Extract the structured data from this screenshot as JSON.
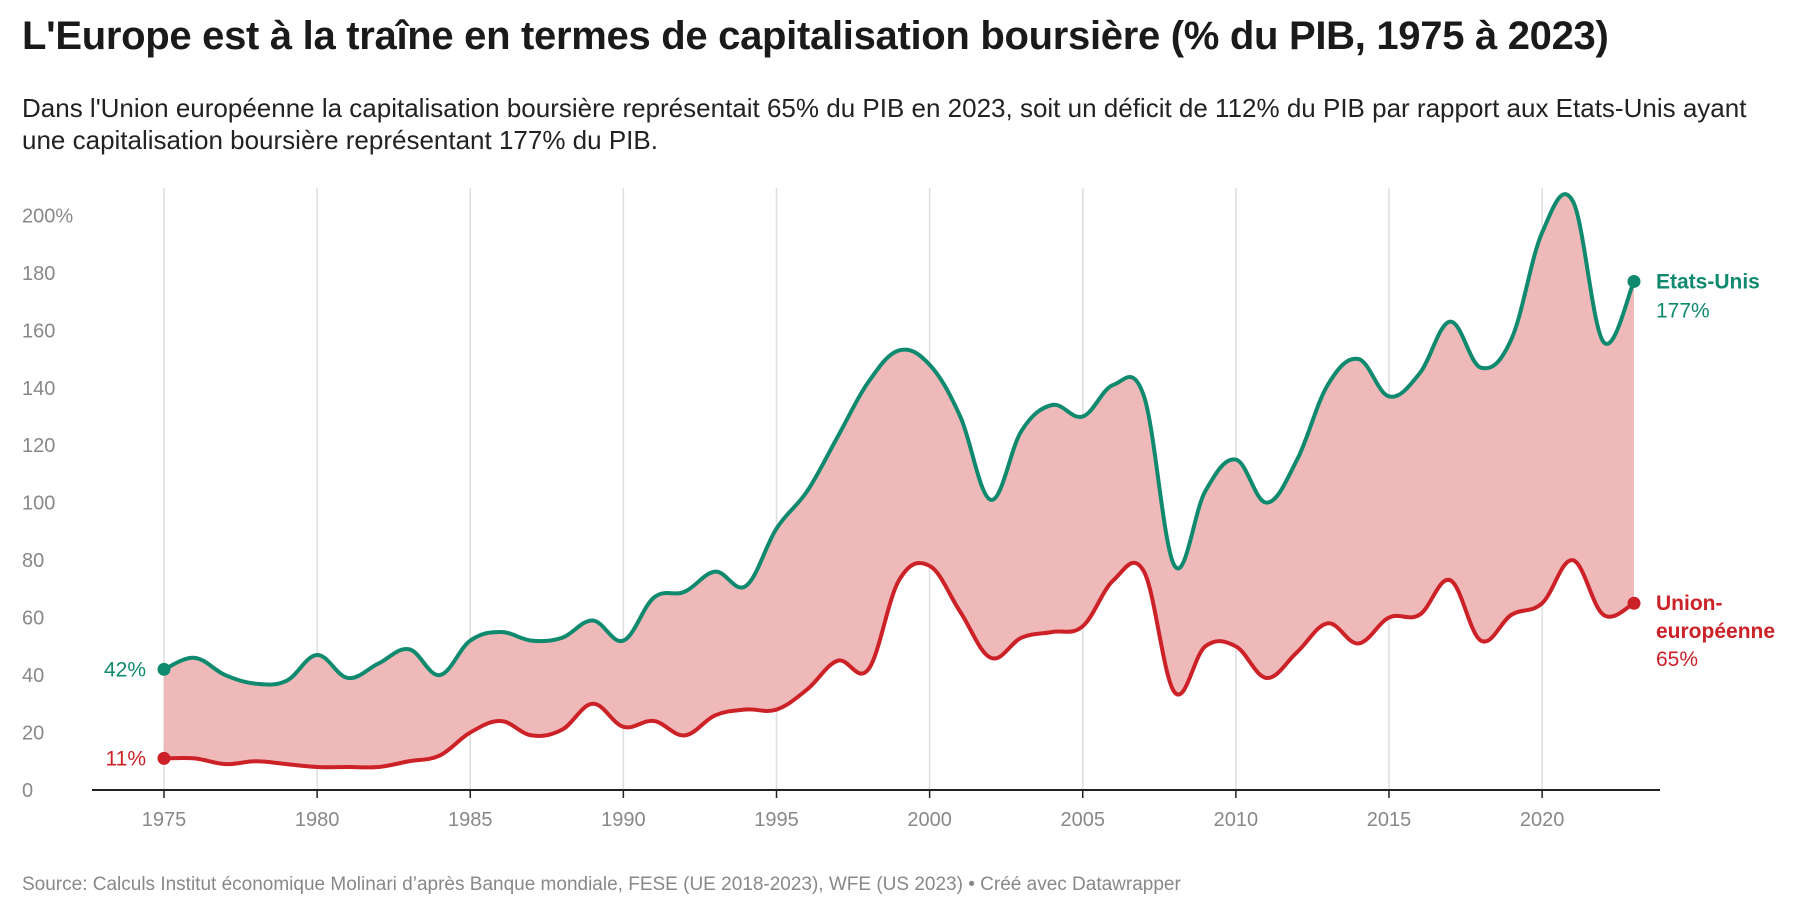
{
  "title": "L'Europe est à la traîne en termes de capitalisation boursière (% du PIB, 1975 à 2023)",
  "subtitle": "Dans l'Union européenne la capitalisation boursière représentait 65% du PIB en 2023, soit un déficit de 112% du PIB par rapport aux Etats-Unis ayant une capitalisation boursière représentant 177% du PIB.",
  "source": "Source: Calculs Institut économique Molinari d’après Banque mondiale, FESE (UE 2018-2023), WFE (US 2023) • Créé avec Datawrapper",
  "colors": {
    "us": "#0f8a6e",
    "eu": "#cc2127",
    "fill": "#efb9b9",
    "grid": "#dddddd",
    "axis": "#222222",
    "tick": "#888888"
  },
  "chart_data": {
    "type": "area",
    "x": [
      1975,
      1976,
      1977,
      1978,
      1979,
      1980,
      1981,
      1982,
      1983,
      1984,
      1985,
      1986,
      1987,
      1988,
      1989,
      1990,
      1991,
      1992,
      1993,
      1994,
      1995,
      1996,
      1997,
      1998,
      1999,
      2000,
      2001,
      2002,
      2003,
      2004,
      2005,
      2006,
      2007,
      2008,
      2009,
      2010,
      2011,
      2012,
      2013,
      2014,
      2015,
      2016,
      2017,
      2018,
      2019,
      2020,
      2021,
      2022,
      2023
    ],
    "series": [
      {
        "name": "Etats-Unis",
        "color": "#0f8a6e",
        "values": [
          42,
          46,
          40,
          37,
          38,
          47,
          39,
          44,
          49,
          40,
          52,
          55,
          52,
          53,
          59,
          52,
          67,
          69,
          76,
          71,
          91,
          104,
          123,
          142,
          153,
          148,
          130,
          101,
          125,
          134,
          130,
          141,
          137,
          78,
          104,
          115,
          100,
          115,
          141,
          150,
          137,
          145,
          163,
          147,
          157,
          194,
          205,
          156,
          177
        ]
      },
      {
        "name": "Union-européenne",
        "color": "#cc2127",
        "values": [
          11,
          11,
          9,
          10,
          9,
          8,
          8,
          8,
          10,
          12,
          20,
          24,
          19,
          21,
          30,
          22,
          24,
          19,
          26,
          28,
          28,
          35,
          45,
          42,
          73,
          78,
          62,
          46,
          53,
          55,
          57,
          73,
          76,
          34,
          50,
          50,
          39,
          48,
          58,
          51,
          60,
          61,
          73,
          52,
          61,
          65,
          80,
          61,
          65
        ]
      }
    ],
    "y_ticks": [
      "0",
      "20",
      "40",
      "60",
      "80",
      "100",
      "120",
      "140",
      "160",
      "180",
      "200%"
    ],
    "y_tick_values": [
      0,
      20,
      40,
      60,
      80,
      100,
      120,
      140,
      160,
      180,
      200
    ],
    "x_ticks": [
      1975,
      1980,
      1985,
      1990,
      1995,
      2000,
      2005,
      2010,
      2015,
      2020
    ],
    "ylim": [
      0,
      205
    ],
    "grid": "vertical",
    "start_labels": {
      "us": "42%",
      "eu": "11%"
    },
    "end_labels": {
      "us_name": "Etats-Unis",
      "us_value": "177%",
      "eu_name_line1": "Union-",
      "eu_name_line2": "européenne",
      "eu_value": "65%"
    }
  }
}
